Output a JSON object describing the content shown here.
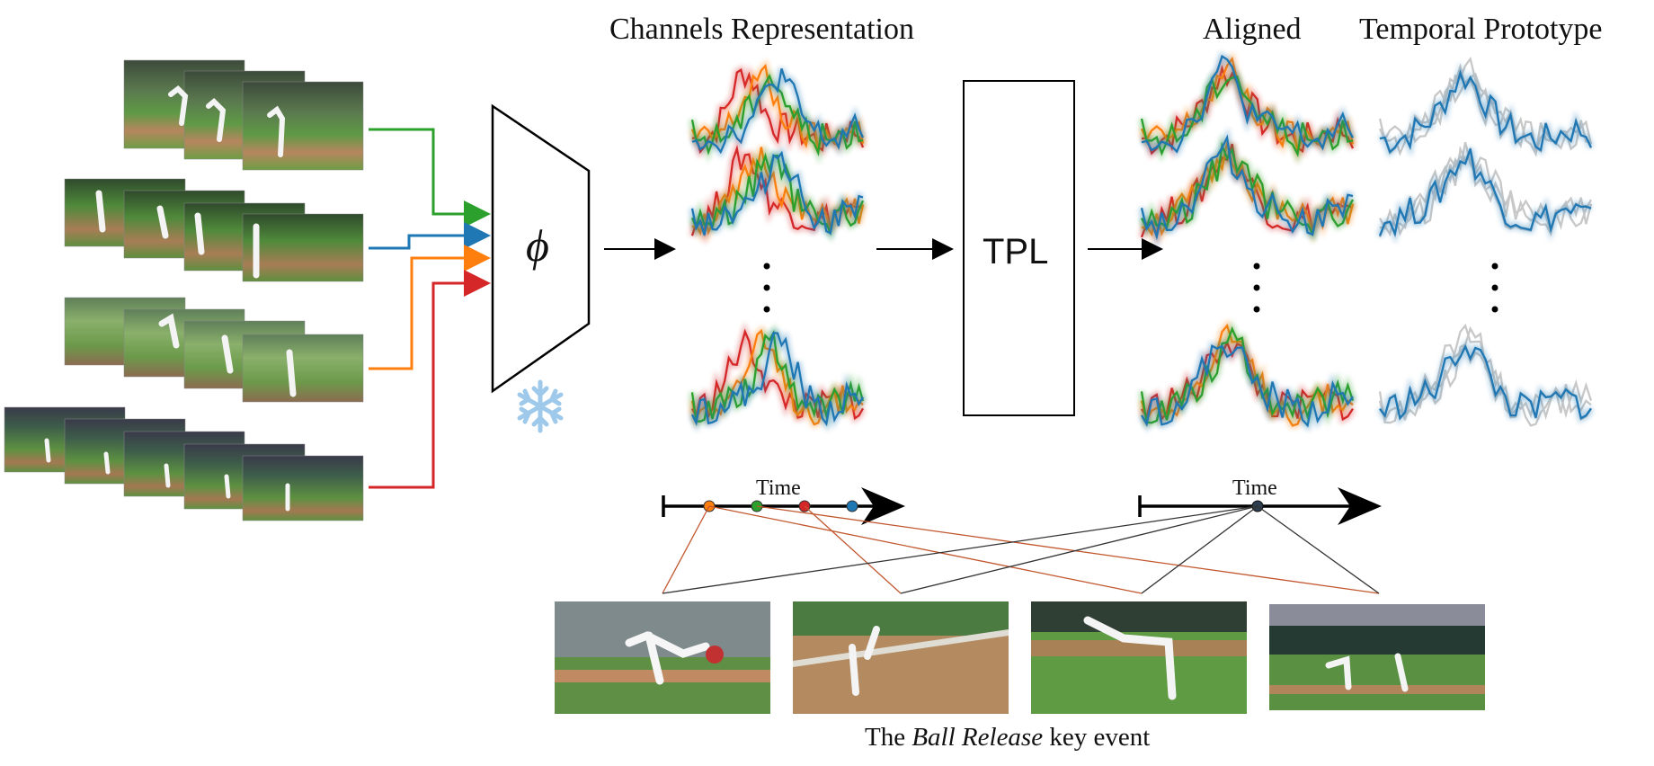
{
  "labels": {
    "channels": "Channels Representation",
    "aligned": "Aligned",
    "prototype": "Temporal Prototype",
    "phi": "ϕ",
    "tpl": "TPL",
    "time_left": "Time",
    "time_right": "Time",
    "caption_pre": "The ",
    "caption_em": "Ball Release",
    "caption_post": " key event"
  },
  "colors": {
    "green": "#2ca02c",
    "blue": "#1f77b4",
    "orange": "#ff7f0e",
    "red": "#d62728",
    "gray": "#c8c8c8",
    "snowflake": "#9ec9ea"
  },
  "icons": [
    "snowflake-icon"
  ]
}
